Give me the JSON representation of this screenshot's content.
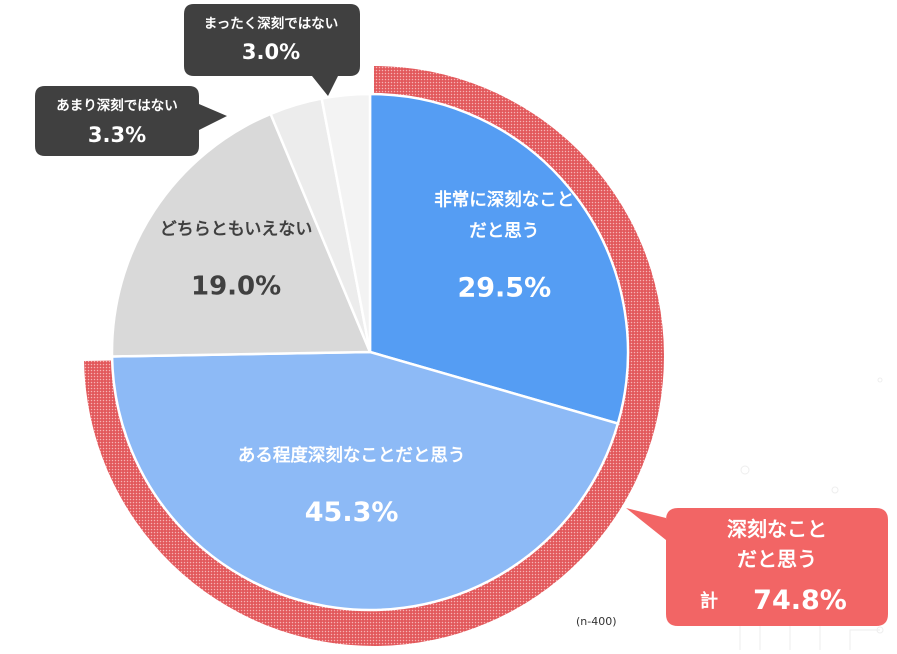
{
  "chart_data": {
    "type": "pie",
    "title": "",
    "sample_note": "(n-400)",
    "slices": [
      {
        "label_lines": [
          "非常に深刻なこと",
          "だと思う"
        ],
        "value": 29.5,
        "value_text": "29.5%",
        "color": "#559df3",
        "text_color": "#ffffff"
      },
      {
        "label_lines": [
          "ある程度深刻なことだと思う"
        ],
        "value": 45.3,
        "value_text": "45.3%",
        "color": "#8dbaf6",
        "text_color": "#ffffff"
      },
      {
        "label_lines": [
          "どちらともいえない"
        ],
        "value": 19.0,
        "value_text": "19.0%",
        "color": "#d9d9d9",
        "text_color": "#404040"
      },
      {
        "label_lines": [
          "あまり深刻ではない"
        ],
        "value": 3.3,
        "value_text": "3.3%",
        "color": "#ececec",
        "text_color": "#ffffff"
      },
      {
        "label_lines": [
          "まったく深刻ではない"
        ],
        "value": 3.0,
        "value_text": "3.0%",
        "color": "#f3f3f3",
        "text_color": "#ffffff"
      }
    ],
    "total_callout": {
      "lines": [
        "深刻なこと",
        "だと思う"
      ],
      "prefix": "計",
      "value_text": "74.8%",
      "color": "#f26565"
    }
  }
}
